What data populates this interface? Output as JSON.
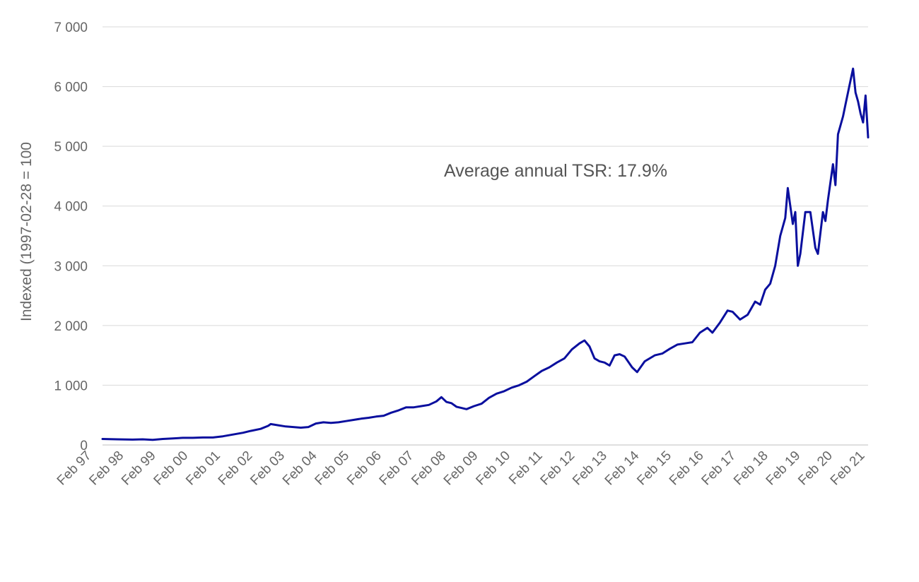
{
  "chart_data": {
    "type": "line",
    "title": "",
    "xlabel": "",
    "ylabel": "Indexed (1997-02-28 = 100",
    "ylim": [
      0,
      7000
    ],
    "y_ticks": [
      0,
      1000,
      2000,
      3000,
      4000,
      5000,
      6000,
      7000
    ],
    "y_tick_labels": [
      "0",
      "1 000",
      "2 000",
      "3 000",
      "4 000",
      "5 000",
      "6 000",
      "7 000"
    ],
    "x_tick_labels": [
      "Feb 97",
      "Feb 98",
      "Feb 99",
      "Feb 00",
      "Feb 01",
      "Feb 02",
      "Feb 03",
      "Feb 04",
      "Feb 05",
      "Feb 06",
      "Feb 07",
      "Feb 08",
      "Feb 09",
      "Feb 10",
      "Feb 11",
      "Feb 12",
      "Feb 13",
      "Feb 14",
      "Feb 15",
      "Feb 16",
      "Feb 17",
      "Feb 18",
      "Feb 19",
      "Feb 20",
      "Feb 21"
    ],
    "grid": "horizontal",
    "annotation": "Average annual TSR: 17.9%",
    "series": [
      {
        "color": "#0a0f9e",
        "points": [
          [
            "1997-02",
            100
          ],
          [
            "1997-08",
            95
          ],
          [
            "1998-02",
            90
          ],
          [
            "1998-06",
            95
          ],
          [
            "1998-10",
            85
          ],
          [
            "1999-02",
            100
          ],
          [
            "1999-06",
            110
          ],
          [
            "1999-10",
            120
          ],
          [
            "2000-02",
            120
          ],
          [
            "2000-06",
            125
          ],
          [
            "2000-10",
            125
          ],
          [
            "2001-02",
            145
          ],
          [
            "2001-06",
            175
          ],
          [
            "2001-10",
            205
          ],
          [
            "2002-01",
            235
          ],
          [
            "2002-05",
            270
          ],
          [
            "2002-08",
            320
          ],
          [
            "2002-09",
            350
          ],
          [
            "2002-12",
            330
          ],
          [
            "2003-03",
            310
          ],
          [
            "2003-06",
            300
          ],
          [
            "2003-09",
            290
          ],
          [
            "2003-12",
            300
          ],
          [
            "2004-03",
            360
          ],
          [
            "2004-06",
            380
          ],
          [
            "2004-09",
            370
          ],
          [
            "2004-12",
            380
          ],
          [
            "2005-03",
            400
          ],
          [
            "2005-06",
            420
          ],
          [
            "2005-09",
            440
          ],
          [
            "2005-12",
            455
          ],
          [
            "2006-03",
            475
          ],
          [
            "2006-06",
            490
          ],
          [
            "2006-09",
            540
          ],
          [
            "2006-12",
            580
          ],
          [
            "2007-03",
            630
          ],
          [
            "2007-06",
            630
          ],
          [
            "2007-09",
            650
          ],
          [
            "2007-12",
            670
          ],
          [
            "2008-03",
            730
          ],
          [
            "2008-05",
            800
          ],
          [
            "2008-07",
            720
          ],
          [
            "2008-09",
            700
          ],
          [
            "2008-11",
            640
          ],
          [
            "2009-01",
            620
          ],
          [
            "2009-03",
            600
          ],
          [
            "2009-06",
            650
          ],
          [
            "2009-09",
            690
          ],
          [
            "2009-12",
            790
          ],
          [
            "2010-03",
            860
          ],
          [
            "2010-06",
            900
          ],
          [
            "2010-09",
            960
          ],
          [
            "2010-12",
            1000
          ],
          [
            "2011-03",
            1060
          ],
          [
            "2011-06",
            1150
          ],
          [
            "2011-09",
            1240
          ],
          [
            "2011-12",
            1300
          ],
          [
            "2012-03",
            1380
          ],
          [
            "2012-06",
            1450
          ],
          [
            "2012-09",
            1600
          ],
          [
            "2012-12",
            1700
          ],
          [
            "2013-02",
            1750
          ],
          [
            "2013-04",
            1650
          ],
          [
            "2013-06",
            1450
          ],
          [
            "2013-08",
            1400
          ],
          [
            "2013-10",
            1380
          ],
          [
            "2013-12",
            1330
          ],
          [
            "2014-02",
            1500
          ],
          [
            "2014-04",
            1520
          ],
          [
            "2014-06",
            1480
          ],
          [
            "2014-09",
            1300
          ],
          [
            "2014-11",
            1220
          ],
          [
            "2015-02",
            1400
          ],
          [
            "2015-06",
            1500
          ],
          [
            "2015-09",
            1530
          ],
          [
            "2015-12",
            1610
          ],
          [
            "2016-03",
            1680
          ],
          [
            "2016-06",
            1700
          ],
          [
            "2016-09",
            1720
          ],
          [
            "2016-12",
            1880
          ],
          [
            "2017-03",
            1960
          ],
          [
            "2017-05",
            1880
          ],
          [
            "2017-08",
            2050
          ],
          [
            "2017-11",
            2250
          ],
          [
            "2018-01",
            2230
          ],
          [
            "2018-04",
            2100
          ],
          [
            "2018-07",
            2180
          ],
          [
            "2018-10",
            2400
          ],
          [
            "2018-12",
            2350
          ],
          [
            "2019-02",
            2600
          ],
          [
            "2019-04",
            2700
          ],
          [
            "2019-06",
            3000
          ],
          [
            "2019-08",
            3500
          ],
          [
            "2019-10",
            3800
          ],
          [
            "2019-11",
            4300
          ],
          [
            "2020-01",
            3700
          ],
          [
            "2020-02",
            3900
          ],
          [
            "2020-03",
            3000
          ],
          [
            "2020-04",
            3200
          ],
          [
            "2020-06",
            3900
          ],
          [
            "2020-08",
            3900
          ],
          [
            "2020-10",
            3300
          ],
          [
            "2020-11",
            3200
          ],
          [
            "2021-01",
            3900
          ],
          [
            "2021-02",
            3750
          ],
          [
            "2021-03",
            4100
          ],
          [
            "2021-05",
            4700
          ],
          [
            "2021-06",
            4350
          ],
          [
            "2021-07",
            5200
          ],
          [
            "2021-09",
            5500
          ],
          [
            "2021-10",
            5700
          ],
          [
            "2021-12",
            6100
          ],
          [
            "2022-01",
            6300
          ],
          [
            "2022-02",
            5900
          ],
          [
            "2022-03",
            5750
          ],
          [
            "2022-04",
            5550
          ],
          [
            "2022-05",
            5400
          ],
          [
            "2022-06",
            5850
          ],
          [
            "2022-07",
            5150
          ]
        ]
      }
    ]
  }
}
